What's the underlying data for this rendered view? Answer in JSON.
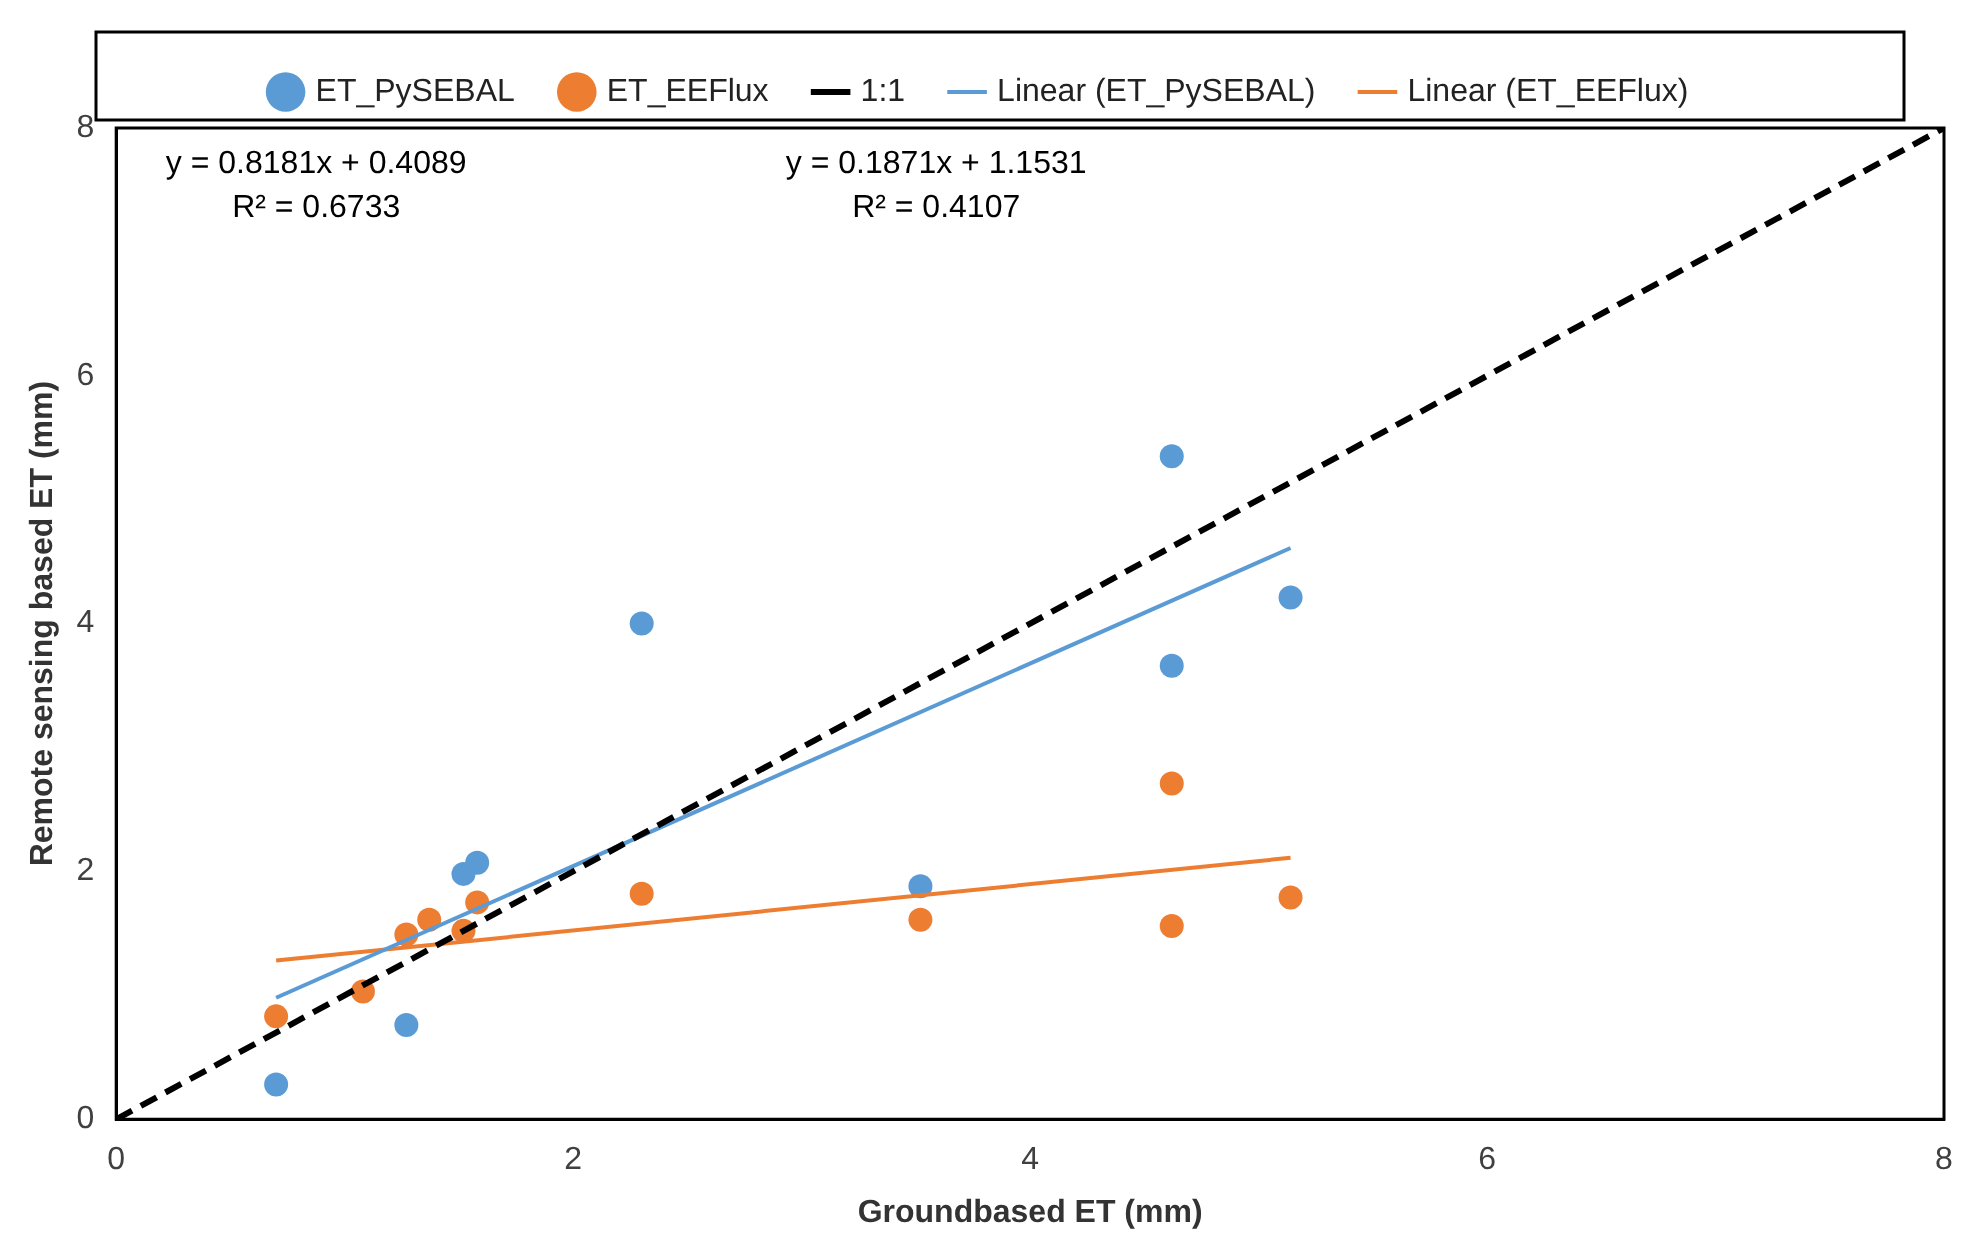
{
  "chart_data": {
    "type": "scatter",
    "xlabel": "Groundbased ET (mm)",
    "ylabel": "Remote sensing based ET (mm)",
    "xlim": [
      0,
      8
    ],
    "ylim": [
      0,
      8
    ],
    "xticks": [
      0,
      2,
      4,
      6,
      8
    ],
    "yticks": [
      0,
      2,
      4,
      6,
      8
    ],
    "grid": false,
    "legend": "top",
    "marker": "circle",
    "series": [
      {
        "name": "ET_PySEBAL",
        "color": "#5b9bd5",
        "x": [
          0.7,
          1.27,
          1.52,
          1.58,
          2.3,
          3.52,
          4.62,
          4.62,
          5.14
        ],
        "values": [
          0.28,
          0.76,
          1.98,
          2.07,
          4.0,
          1.88,
          5.35,
          3.66,
          4.21
        ]
      },
      {
        "name": "ET_EEFlux",
        "color": "#ed7d31",
        "x": [
          0.7,
          1.08,
          1.27,
          1.37,
          1.52,
          1.58,
          2.3,
          3.52,
          4.62,
          4.62,
          5.14
        ],
        "values": [
          0.83,
          1.03,
          1.49,
          1.61,
          1.52,
          1.75,
          1.82,
          1.61,
          2.71,
          1.56,
          1.79
        ]
      },
      {
        "name": "1:1",
        "type": "line",
        "color": "#000000",
        "line_style": "dashed",
        "marker": "none",
        "x": [
          0,
          8
        ],
        "values": [
          0,
          8
        ]
      },
      {
        "name": "Linear (ET_PySEBAL)",
        "type": "line",
        "color": "#5b9bd5",
        "line_style": "solid",
        "marker": "none",
        "x": [
          0.7,
          5.14
        ],
        "values": [
          0.98,
          4.61
        ]
      },
      {
        "name": "Linear (ET_EEFlux)",
        "type": "line",
        "color": "#ed7d31",
        "line_style": "solid",
        "marker": "none",
        "x": [
          0.7,
          5.14
        ],
        "values": [
          1.28,
          2.11
        ]
      }
    ],
    "annotations": [
      "y = 0.8181x + 0.4089\nR² = 0.6733",
      "y = 0.1871x + 1.1531\nR² = 0.4107"
    ]
  }
}
